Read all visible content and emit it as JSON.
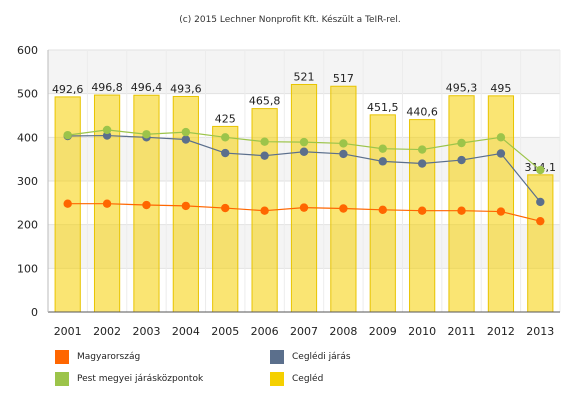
{
  "chart_data": {
    "type": "bar",
    "title": "(c) 2015 Lechner Nonprofit Kft. Készült a TeIR-rel.",
    "xlabel": "",
    "ylabel": "",
    "categories": [
      "2001",
      "2002",
      "2003",
      "2004",
      "2005",
      "2006",
      "2007",
      "2008",
      "2009",
      "2010",
      "2011",
      "2012",
      "2013"
    ],
    "ylim": [
      0,
      600
    ],
    "yticks": [
      0,
      100,
      200,
      300,
      400,
      500,
      600
    ],
    "grid": true,
    "bar_series": {
      "name": "Cegléd",
      "color": "#f5d000",
      "values": [
        492.6,
        496.8,
        496.4,
        493.6,
        425,
        465.8,
        521,
        517,
        451.5,
        440.6,
        495.3,
        495,
        314.1
      ],
      "labels": [
        "492,6",
        "496,8",
        "496,4",
        "493,6",
        "425",
        "465,8",
        "521",
        "517",
        "451,5",
        "440,6",
        "495,3",
        "495",
        "314,1"
      ]
    },
    "line_series": [
      {
        "name": "Magyarország",
        "color": "#ff6600",
        "values": [
          248,
          248,
          245,
          243,
          238,
          232,
          239,
          237,
          234,
          232,
          232,
          230,
          208
        ]
      },
      {
        "name": "Ceglédi járás",
        "color": "#5b6f8c",
        "values": [
          403,
          404,
          400,
          395,
          364,
          358,
          367,
          362,
          345,
          340,
          348,
          363,
          252
        ]
      },
      {
        "name": "Pest megyei járásközpontok",
        "color": "#9cc44a",
        "values": [
          405,
          417,
          407,
          412,
          400,
          390,
          389,
          386,
          374,
          372,
          387,
          400,
          325
        ]
      }
    ],
    "legend": [
      {
        "label": "Magyarország",
        "color": "#ff6600"
      },
      {
        "label": "Ceglédi járás",
        "color": "#5b6f8c"
      },
      {
        "label": "Pest megyei járásközpontok",
        "color": "#9cc44a"
      },
      {
        "label": "Cegléd",
        "color": "#f5d000"
      }
    ],
    "legend_position": "bottom"
  }
}
